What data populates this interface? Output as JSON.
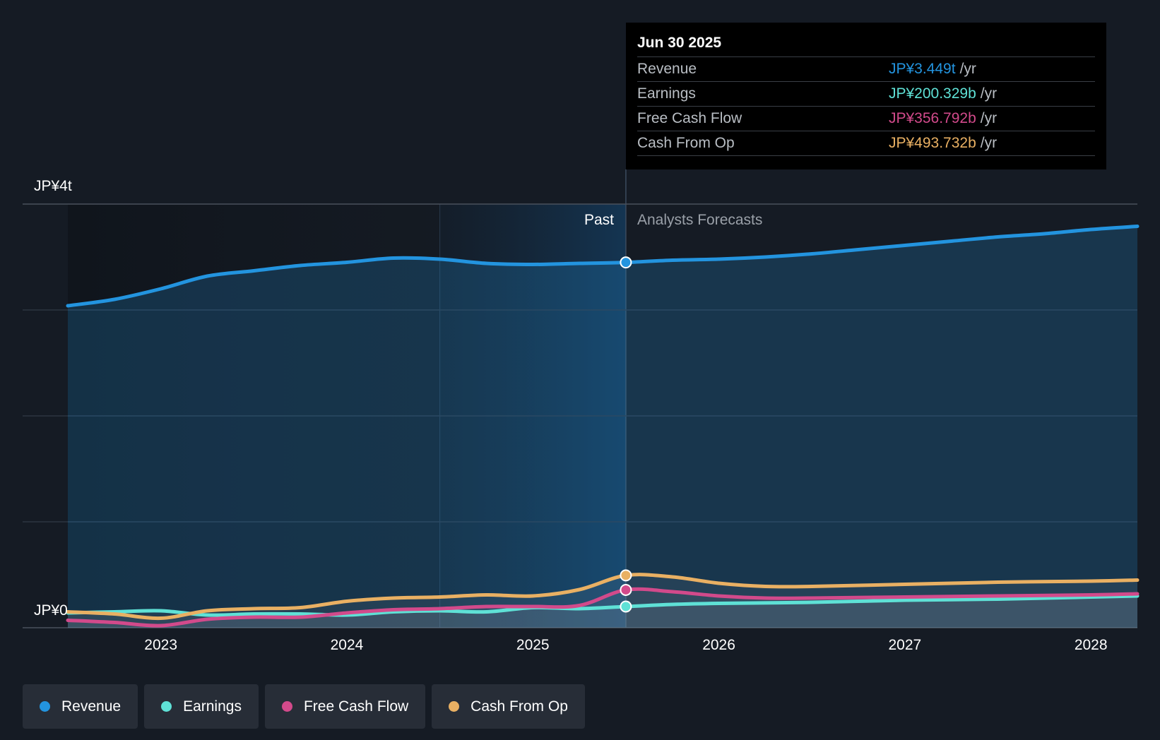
{
  "chart_data": {
    "type": "line",
    "y_axis": {
      "top_label": "JP¥4t",
      "bottom_label": "JP¥0",
      "ylim": [
        0,
        4.0
      ],
      "unit": "trillion JPY"
    },
    "x_ticks": [
      "2023",
      "2024",
      "2025",
      "2026",
      "2027",
      "2028"
    ],
    "x_range": [
      2022.5,
      2028.25
    ],
    "period_labels": {
      "past": "Past",
      "forecast": "Analysts Forecasts"
    },
    "divider_x": 2025.5,
    "highlight_start_x": 2024.5,
    "series": [
      {
        "name": "Revenue",
        "key": "revenue",
        "color": "#2394df",
        "points": [
          [
            2022.5,
            3.04
          ],
          [
            2022.75,
            3.1
          ],
          [
            2023.0,
            3.2
          ],
          [
            2023.25,
            3.32
          ],
          [
            2023.5,
            3.37
          ],
          [
            2023.75,
            3.42
          ],
          [
            2024.0,
            3.45
          ],
          [
            2024.25,
            3.49
          ],
          [
            2024.5,
            3.48
          ],
          [
            2024.75,
            3.44
          ],
          [
            2025.0,
            3.43
          ],
          [
            2025.25,
            3.44
          ],
          [
            2025.5,
            3.449
          ],
          [
            2025.75,
            3.47
          ],
          [
            2026.0,
            3.48
          ],
          [
            2026.25,
            3.5
          ],
          [
            2026.5,
            3.53
          ],
          [
            2026.75,
            3.57
          ],
          [
            2027.0,
            3.61
          ],
          [
            2027.25,
            3.65
          ],
          [
            2027.5,
            3.69
          ],
          [
            2027.75,
            3.72
          ],
          [
            2028.0,
            3.76
          ],
          [
            2028.25,
            3.79
          ]
        ]
      },
      {
        "name": "Earnings",
        "key": "earnings",
        "color": "#5fe1d6",
        "points": [
          [
            2022.5,
            0.14
          ],
          [
            2022.75,
            0.15
          ],
          [
            2023.0,
            0.16
          ],
          [
            2023.25,
            0.12
          ],
          [
            2023.5,
            0.13
          ],
          [
            2023.75,
            0.13
          ],
          [
            2024.0,
            0.12
          ],
          [
            2024.25,
            0.15
          ],
          [
            2024.5,
            0.16
          ],
          [
            2024.75,
            0.15
          ],
          [
            2025.0,
            0.19
          ],
          [
            2025.25,
            0.18
          ],
          [
            2025.5,
            0.2
          ],
          [
            2025.75,
            0.22
          ],
          [
            2026.0,
            0.23
          ],
          [
            2026.5,
            0.24
          ],
          [
            2027.0,
            0.26
          ],
          [
            2027.5,
            0.27
          ],
          [
            2028.0,
            0.29
          ],
          [
            2028.25,
            0.3
          ]
        ]
      },
      {
        "name": "Free Cash Flow",
        "key": "fcf",
        "color": "#d24a8b",
        "points": [
          [
            2022.5,
            0.07
          ],
          [
            2022.75,
            0.05
          ],
          [
            2023.0,
            0.02
          ],
          [
            2023.25,
            0.08
          ],
          [
            2023.5,
            0.1
          ],
          [
            2023.75,
            0.1
          ],
          [
            2024.0,
            0.14
          ],
          [
            2024.25,
            0.17
          ],
          [
            2024.5,
            0.18
          ],
          [
            2024.75,
            0.2
          ],
          [
            2025.0,
            0.2
          ],
          [
            2025.25,
            0.21
          ],
          [
            2025.5,
            0.357
          ],
          [
            2025.75,
            0.34
          ],
          [
            2026.0,
            0.3
          ],
          [
            2026.25,
            0.28
          ],
          [
            2026.5,
            0.28
          ],
          [
            2027.0,
            0.29
          ],
          [
            2027.5,
            0.3
          ],
          [
            2028.0,
            0.31
          ],
          [
            2028.25,
            0.32
          ]
        ]
      },
      {
        "name": "Cash From Op",
        "key": "cfo",
        "color": "#e9b063",
        "points": [
          [
            2022.5,
            0.15
          ],
          [
            2022.75,
            0.13
          ],
          [
            2023.0,
            0.09
          ],
          [
            2023.25,
            0.16
          ],
          [
            2023.5,
            0.18
          ],
          [
            2023.75,
            0.19
          ],
          [
            2024.0,
            0.25
          ],
          [
            2024.25,
            0.28
          ],
          [
            2024.5,
            0.29
          ],
          [
            2024.75,
            0.31
          ],
          [
            2025.0,
            0.3
          ],
          [
            2025.25,
            0.36
          ],
          [
            2025.5,
            0.494
          ],
          [
            2025.75,
            0.48
          ],
          [
            2026.0,
            0.42
          ],
          [
            2026.25,
            0.39
          ],
          [
            2026.5,
            0.39
          ],
          [
            2027.0,
            0.41
          ],
          [
            2027.5,
            0.43
          ],
          [
            2028.0,
            0.44
          ],
          [
            2028.25,
            0.45
          ]
        ]
      }
    ]
  },
  "tooltip": {
    "date": "Jun 30 2025",
    "rows": [
      {
        "name": "Revenue",
        "value": "JP¥3.449t",
        "unit": "/yr",
        "color": "#2394df"
      },
      {
        "name": "Earnings",
        "value": "JP¥200.329b",
        "unit": "/yr",
        "color": "#5fe1d6"
      },
      {
        "name": "Free Cash Flow",
        "value": "JP¥356.792b",
        "unit": "/yr",
        "color": "#d24a8b"
      },
      {
        "name": "Cash From Op",
        "value": "JP¥493.732b",
        "unit": "/yr",
        "color": "#e9b063"
      }
    ]
  },
  "legend": [
    {
      "label": "Revenue",
      "color": "#2394df"
    },
    {
      "label": "Earnings",
      "color": "#5fe1d6"
    },
    {
      "label": "Free Cash Flow",
      "color": "#d24a8b"
    },
    {
      "label": "Cash From Op",
      "color": "#e9b063"
    }
  ]
}
